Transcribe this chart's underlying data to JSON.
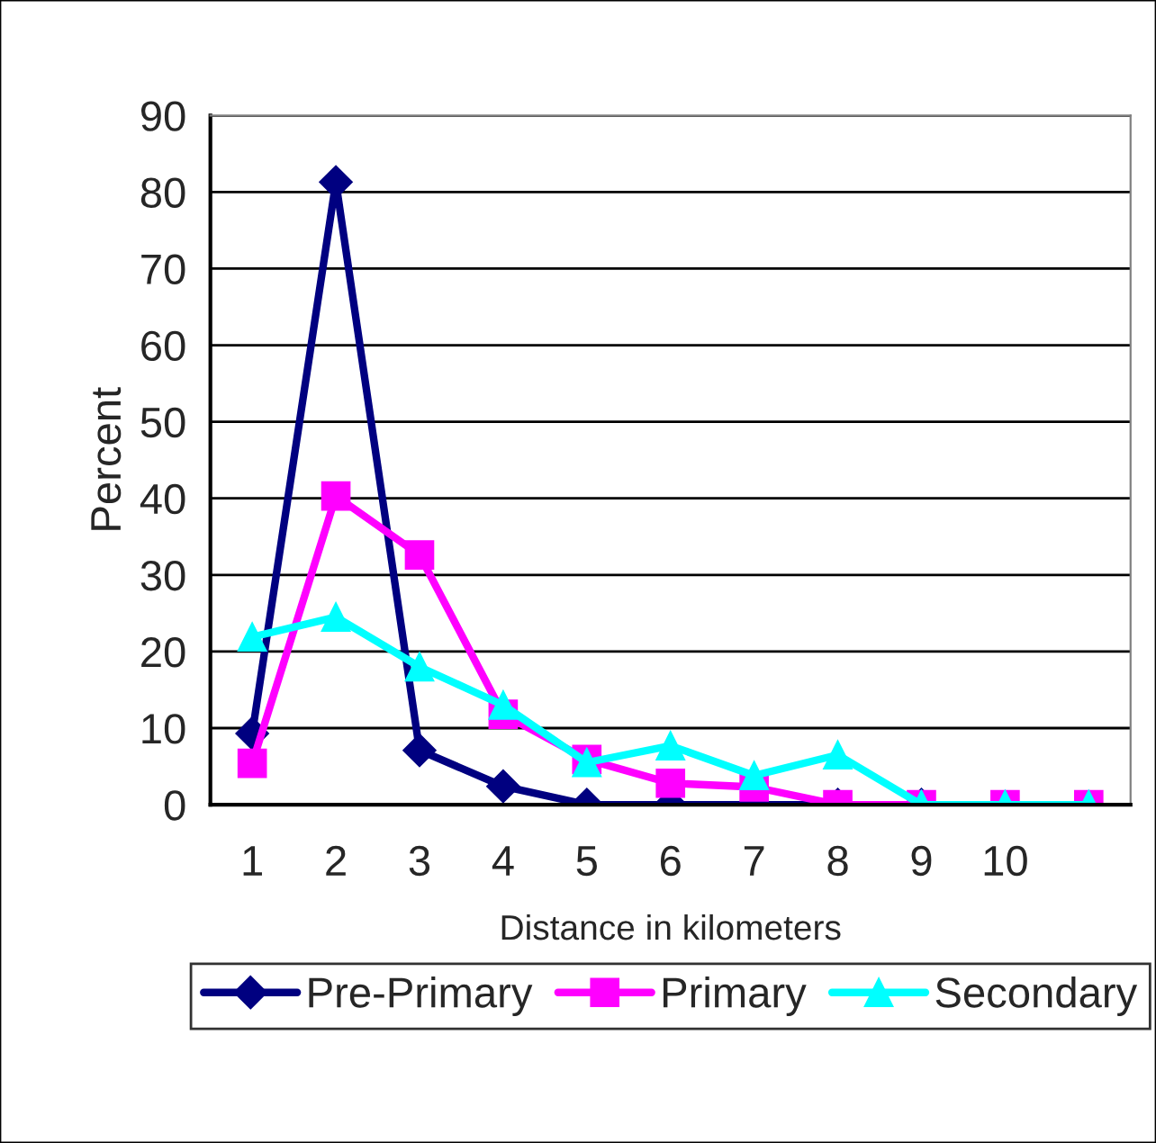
{
  "chart_data": {
    "type": "line",
    "xlabel": "Distance in kilometers",
    "ylabel": "Percent",
    "categories": [
      "1",
      "2",
      "3",
      "4",
      "5",
      "6",
      "7",
      "8",
      "9",
      "10",
      null
    ],
    "series": [
      {
        "name": "Pre-Primary",
        "color": "#000080",
        "marker": "diamond",
        "values": [
          9.3,
          81.3,
          7.1,
          2.4,
          0,
          0,
          0,
          0,
          0,
          null,
          null
        ]
      },
      {
        "name": "Primary",
        "color": "#ff00ff",
        "marker": "square",
        "values": [
          5.4,
          40.3,
          32.6,
          11.8,
          5.9,
          2.8,
          2.3,
          0,
          0,
          0,
          0
        ]
      },
      {
        "name": "Secondary",
        "color": "#00ffff",
        "marker": "triangle",
        "values": [
          21.9,
          24.5,
          18,
          13,
          5.5,
          7.7,
          3.8,
          6.5,
          0,
          0,
          0
        ]
      }
    ],
    "ylim": [
      0,
      90
    ],
    "yticks": [
      0,
      10,
      20,
      30,
      40,
      50,
      60,
      70,
      80,
      90
    ],
    "grid": "y",
    "legend": "bottom",
    "line_style": "solid"
  }
}
